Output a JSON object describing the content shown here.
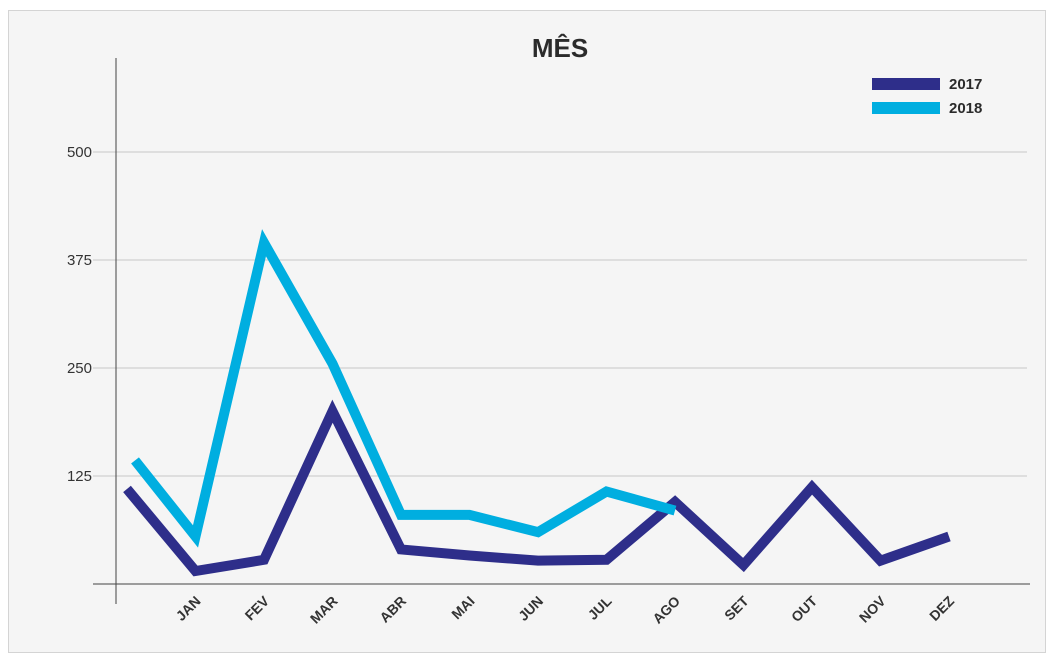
{
  "chart_data": {
    "type": "line",
    "title": "MÊS",
    "xlabel": "",
    "ylabel": "",
    "categories": [
      "",
      "JAN",
      "FEV",
      "MAR",
      "ABR",
      "MAI",
      "JUN",
      "JUL",
      "AGO",
      "SET",
      "OUT",
      "NOV",
      "DEZ"
    ],
    "yticks": [
      125,
      250,
      375,
      500
    ],
    "ylim": [
      0,
      500
    ],
    "grid": true,
    "legend_position": "top-right",
    "series": [
      {
        "name": "2017",
        "color": "#2e2e8a",
        "values": [
          110,
          15,
          28,
          200,
          40,
          33,
          27,
          28,
          95,
          22,
          112,
          27,
          55
        ]
      },
      {
        "name": "2018",
        "color": "#00aee0",
        "values": [
          143,
          55,
          395,
          255,
          80,
          80,
          60,
          107,
          85,
          null,
          null,
          null,
          null
        ]
      }
    ]
  }
}
